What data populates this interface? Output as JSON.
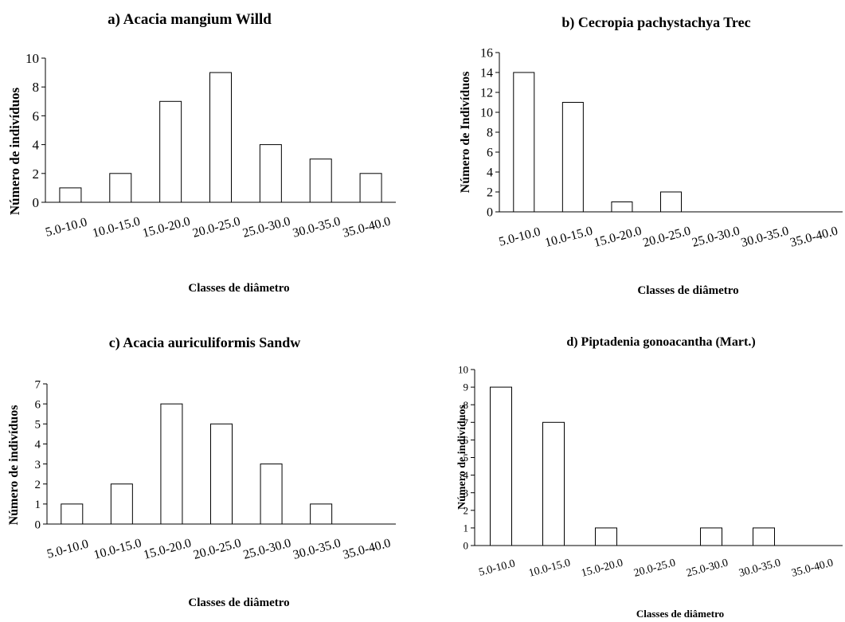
{
  "chart_data": [
    {
      "type": "bar",
      "title": "a) Acacia mangium Willd",
      "ylabel": "Número de indivíduos",
      "xlabel": "Classes de diâmetro",
      "categories": [
        "5.0-10.0",
        "10.0-15.0",
        "15.0-20.0",
        "20.0-25.0",
        "25.0-30.0",
        "30.0-35.0",
        "35.0-40.0"
      ],
      "values": [
        1,
        2,
        7,
        9,
        4,
        3,
        2
      ],
      "ylim": [
        0,
        10
      ],
      "yticks": [
        0,
        2,
        4,
        6,
        8,
        10
      ],
      "grid": false,
      "bar_fill": "#ffffff",
      "bar_stroke": "#000000"
    },
    {
      "type": "bar",
      "title": "b) Cecropia pachystachya Trec",
      "ylabel": "Número de Indivíduos",
      "xlabel": "Classes de diâmetro",
      "categories": [
        "5.0-10.0",
        "10.0-15.0",
        "15.0-20.0",
        "20.0-25.0",
        "25.0-30.0",
        "30.0-35.0",
        "35.0-40.0"
      ],
      "values": [
        14,
        11,
        1,
        2,
        0,
        0,
        0
      ],
      "ylim": [
        0,
        16
      ],
      "yticks": [
        0,
        2,
        4,
        6,
        8,
        10,
        12,
        14,
        16
      ],
      "grid": false,
      "bar_fill": "#ffffff",
      "bar_stroke": "#000000"
    },
    {
      "type": "bar",
      "title": "c) Acacia auriculiformis Sandw",
      "ylabel": "Número de indivíduos",
      "xlabel": "Classes de diâmetro",
      "categories": [
        "5.0-10.0",
        "10.0-15.0",
        "15.0-20.0",
        "20.0-25.0",
        "25.0-30.0",
        "30.0-35.0",
        "35.0-40.0"
      ],
      "values": [
        1,
        2,
        6,
        5,
        3,
        1,
        0
      ],
      "ylim": [
        0,
        7
      ],
      "yticks": [
        0,
        1,
        2,
        3,
        4,
        5,
        6,
        7
      ],
      "grid": false,
      "bar_fill": "#ffffff",
      "bar_stroke": "#000000"
    },
    {
      "type": "bar",
      "title": "d) Piptadenia gonoacantha (Mart.)",
      "ylabel": "Número de indivíduos",
      "xlabel": "Classes de diâmetro",
      "categories": [
        "5.0-10.0",
        "10.0-15.0",
        "15.0-20.0",
        "20.0-25.0",
        "25.0-30.0",
        "30.0-35.0",
        "35.0-40.0"
      ],
      "values": [
        9,
        7,
        1,
        0,
        1,
        1,
        0
      ],
      "ylim": [
        0,
        10
      ],
      "yticks": [
        0,
        1,
        2,
        3,
        4,
        5,
        6,
        7,
        8,
        9,
        10
      ],
      "grid": false,
      "bar_fill": "#ffffff",
      "bar_stroke": "#000000"
    }
  ]
}
